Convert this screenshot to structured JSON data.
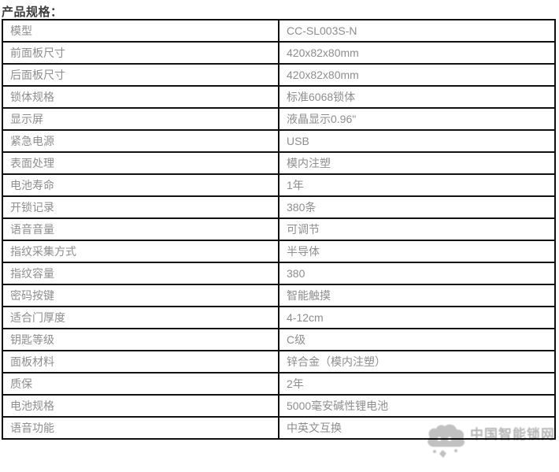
{
  "page": {
    "title": "产品规格："
  },
  "table": {
    "rows": [
      {
        "label": "模型",
        "value": "CC-SL003S-N"
      },
      {
        "label": "前面板尺寸",
        "value": "420x82x80mm"
      },
      {
        "label": "后面板尺寸",
        "value": "420x82x80mm"
      },
      {
        "label": "锁体规格",
        "value": "标准6068锁体"
      },
      {
        "label": "显示屏",
        "value": "液晶显示0.96\""
      },
      {
        "label": "紧急电源",
        "value": "USB"
      },
      {
        "label": "表面处理",
        "value": "模内注塑"
      },
      {
        "label": "电池寿命",
        "value": "1年"
      },
      {
        "label": "开锁记录",
        "value": "380条"
      },
      {
        "label": "语音音量",
        "value": "可调节"
      },
      {
        "label": "指纹采集方式",
        "value": "半导体"
      },
      {
        "label": "指纹容量",
        "value": "380"
      },
      {
        "label": "密码按键",
        "value": "智能触摸"
      },
      {
        "label": "适合门厚度",
        "value": "4-12cm"
      },
      {
        "label": "钥匙等级",
        "value": "C级"
      },
      {
        "label": "面板材料",
        "value": "锌合金（模内注塑）"
      },
      {
        "label": "质保",
        "value": "2年"
      },
      {
        "label": "电池规格",
        "value": "5000毫安碱性锂电池"
      },
      {
        "label": "语音功能",
        "value": "中英文互换"
      }
    ]
  },
  "watermark": {
    "text": "中国智能锁网"
  },
  "colors": {
    "border": "#111111",
    "cell_text": "#8e8e8e",
    "title_text": "#3d3d3d",
    "watermark": "#a9a9a9"
  }
}
